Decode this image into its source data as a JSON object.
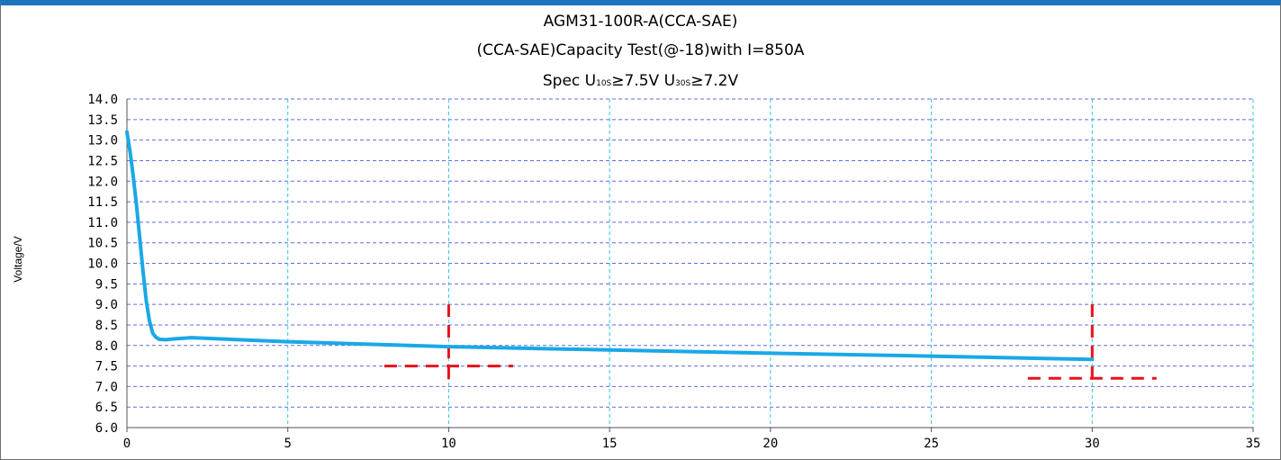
{
  "chart_data": {
    "type": "line",
    "title": "AGM31-100R-A(CCA-SAE)",
    "subtitle": "(CCA-SAE)Capacity Test(@-18)with I=850A",
    "spec": {
      "prefix": "Spec U",
      "sub1": "10S",
      "mid": "≥7.5V U",
      "sub2": "30S",
      "suffix": "≥7.2V"
    },
    "xlabel": "",
    "ylabel": "Voltage/V",
    "xlim": [
      0,
      35
    ],
    "ylim": [
      6.0,
      14.0
    ],
    "x_ticks": [
      "0",
      "5",
      "10",
      "15",
      "20",
      "25",
      "30",
      "35"
    ],
    "y_ticks": [
      "6.0",
      "6.5",
      "7.0",
      "7.5",
      "8.0",
      "8.5",
      "9.0",
      "9.5",
      "10.0",
      "10.5",
      "11.0",
      "11.5",
      "12.0",
      "12.5",
      "13.0",
      "13.5",
      "14.0"
    ],
    "grid": true,
    "series": [
      {
        "color": "#1aa8e6",
        "x": [
          0,
          0.1,
          0.2,
          0.3,
          0.4,
          0.5,
          0.6,
          0.7,
          0.8,
          0.9,
          1.0,
          1.2,
          1.5,
          2.0,
          5,
          10,
          15,
          20,
          25,
          30
        ],
        "y": [
          13.2,
          12.7,
          12.1,
          11.4,
          10.6,
          9.8,
          9.1,
          8.6,
          8.3,
          8.2,
          8.15,
          8.14,
          8.16,
          8.19,
          8.09,
          7.97,
          7.89,
          7.81,
          7.74,
          7.66
        ]
      }
    ],
    "spec_markers": [
      {
        "x": 10,
        "y": 7.5,
        "x_range": [
          8,
          12
        ],
        "y_top": 9.0,
        "y_bottom": 7.0,
        "color": "#e8111a"
      },
      {
        "x": 30,
        "y": 7.2,
        "x_range": [
          28,
          32
        ],
        "y_top": 9.0,
        "y_bottom": 7.0,
        "color": "#e8111a"
      }
    ]
  }
}
